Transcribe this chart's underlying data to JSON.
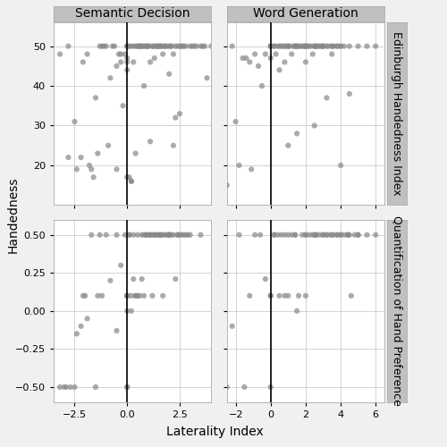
{
  "title_top_left": "Semantic Decision",
  "title_top_right": "Word Generation",
  "ylabel_right_top": "Edinburgh Handedness Index",
  "ylabel_right_bottom": "Quantification of Hand Preference",
  "xlabel": "Laterality Index",
  "ylabel_left": "Handedness",
  "bg_color": "#f0f0f0",
  "panel_bg": "#ffffff",
  "grid_color": "#cccccc",
  "dot_color": "#888888",
  "dot_alpha": 0.7,
  "dot_size": 20,
  "sd_ehi_x": [
    -3.2,
    -2.8,
    -2.8,
    -2.5,
    -2.4,
    -2.2,
    -2.1,
    -1.9,
    -1.8,
    -1.7,
    -1.6,
    -1.5,
    -1.4,
    -1.3,
    -1.2,
    -1.1,
    -1.0,
    -0.9,
    -0.8,
    -0.7,
    -0.6,
    -0.5,
    -0.4,
    -0.3,
    -0.2,
    -0.1,
    0.0,
    0.0,
    0.0,
    0.0,
    0.0,
    0.1,
    0.2,
    0.2,
    0.3,
    0.4,
    0.5,
    0.6,
    0.7,
    0.8,
    0.9,
    1.0,
    1.0,
    1.1,
    1.2,
    1.3,
    1.4,
    1.5,
    1.6,
    1.7,
    1.8,
    1.9,
    2.0,
    2.1,
    2.2,
    2.3,
    2.4,
    2.5,
    2.6,
    2.7,
    2.8,
    3.0,
    3.1,
    3.2,
    3.3,
    3.5,
    3.6,
    3.7,
    3.8,
    4.0,
    -0.5,
    -0.3,
    0.1,
    0.3,
    0.5,
    0.7,
    0.9,
    1.1,
    1.3,
    1.5,
    1.7,
    2.0,
    2.2,
    2.5,
    0.0,
    0.0,
    0.2,
    0.4,
    0.6,
    0.8,
    1.0,
    1.2,
    1.4,
    1.6,
    1.8,
    2.1,
    2.3,
    2.6
  ],
  "sd_ehi_y": [
    48,
    50,
    22,
    31,
    19,
    22,
    46,
    48,
    20,
    19,
    17,
    37,
    23,
    50,
    50,
    50,
    50,
    25,
    42,
    50,
    50,
    19,
    48,
    46,
    35,
    48,
    50,
    50,
    47,
    44,
    46,
    17,
    50,
    16,
    50,
    23,
    50,
    50,
    50,
    40,
    50,
    50,
    50,
    26,
    50,
    50,
    50,
    50,
    50,
    50,
    50,
    50,
    50,
    50,
    25,
    32,
    50,
    33,
    50,
    50,
    50,
    50,
    50,
    50,
    50,
    50,
    50,
    50,
    42,
    50,
    45,
    48,
    50,
    46,
    50,
    50,
    50,
    46,
    47,
    50,
    48,
    43,
    48,
    50,
    17,
    50,
    16,
    50,
    50,
    50,
    50,
    50,
    50,
    50,
    50,
    50,
    50,
    50
  ],
  "wg_ehi_x": [
    -2.5,
    -2.2,
    -2.0,
    -1.8,
    -1.6,
    -1.4,
    -1.2,
    -1.1,
    -0.9,
    -0.7,
    -0.5,
    -0.3,
    0.0,
    0.0,
    0.0,
    0.2,
    0.3,
    0.4,
    0.5,
    0.6,
    0.7,
    0.8,
    0.9,
    1.0,
    1.1,
    1.2,
    1.3,
    1.4,
    1.5,
    1.6,
    1.7,
    1.8,
    1.9,
    2.0,
    2.1,
    2.2,
    2.3,
    2.4,
    2.5,
    2.6,
    2.7,
    2.8,
    2.9,
    3.0,
    3.2,
    3.3,
    3.5,
    3.6,
    3.8,
    4.0,
    4.2,
    4.5,
    5.0,
    5.5,
    6.0,
    0.0,
    0.5,
    1.0,
    1.5,
    2.0,
    2.5,
    3.0,
    3.5,
    4.0,
    0.2,
    0.8,
    1.4,
    2.0,
    2.6,
    3.2,
    3.8,
    1.0,
    1.5,
    2.0,
    2.5,
    3.0,
    3.5,
    4.0,
    4.5
  ],
  "wg_ehi_y": [
    15,
    50,
    31,
    20,
    47,
    47,
    46,
    19,
    48,
    45,
    40,
    48,
    50,
    50,
    50,
    50,
    48,
    50,
    50,
    50,
    50,
    46,
    50,
    50,
    50,
    48,
    50,
    50,
    50,
    50,
    50,
    50,
    50,
    50,
    50,
    50,
    50,
    48,
    50,
    50,
    50,
    50,
    50,
    50,
    37,
    50,
    50,
    50,
    50,
    50,
    50,
    38,
    50,
    50,
    50,
    47,
    44,
    50,
    28,
    46,
    30,
    50,
    48,
    20,
    50,
    50,
    50,
    50,
    50,
    50,
    50,
    25,
    50,
    50,
    50,
    50,
    50,
    50,
    50
  ],
  "sd_qhp_x": [
    -3.2,
    -3.0,
    -2.9,
    -2.7,
    -2.5,
    -2.4,
    -2.2,
    -2.1,
    -2.0,
    -1.9,
    -1.7,
    -1.5,
    -1.4,
    -1.3,
    -1.2,
    -1.0,
    -0.8,
    -0.5,
    -0.5,
    0.0,
    0.0,
    0.0,
    0.0,
    0.0,
    0.0,
    0.1,
    0.2,
    0.3,
    0.4,
    0.5,
    0.6,
    0.7,
    0.8,
    0.9,
    1.0,
    1.1,
    1.2,
    1.3,
    1.4,
    1.5,
    1.6,
    1.7,
    1.8,
    1.9,
    2.0,
    2.1,
    2.2,
    2.3,
    2.4,
    2.5,
    2.6,
    2.7,
    2.8,
    2.9,
    3.0,
    3.5,
    -0.3,
    -0.1,
    0.1,
    0.3,
    0.5,
    0.7,
    0.9,
    1.1,
    1.3,
    1.5,
    1.7,
    2.0,
    0.0,
    0.2,
    0.4,
    0.8,
    1.2,
    1.6,
    2.0,
    2.4
  ],
  "sd_qhp_y": [
    -0.5,
    -0.5,
    -0.5,
    -0.5,
    -0.5,
    -0.15,
    -0.1,
    0.1,
    0.1,
    -0.05,
    0.5,
    -0.5,
    0.1,
    0.5,
    0.1,
    0.5,
    0.2,
    -0.13,
    0.5,
    -0.5,
    -0.5,
    0.1,
    0.1,
    0.1,
    0.1,
    0.5,
    0.1,
    0.21,
    0.1,
    0.1,
    0.1,
    0.21,
    0.1,
    0.5,
    0.5,
    0.5,
    0.1,
    0.5,
    0.5,
    0.5,
    0.5,
    0.1,
    0.5,
    0.5,
    0.5,
    0.5,
    0.5,
    0.21,
    0.5,
    0.5,
    0.5,
    0.5,
    0.5,
    0.5,
    0.5,
    0.5,
    0.3,
    0.5,
    0.5,
    0.5,
    0.5,
    0.5,
    0.5,
    0.5,
    0.5,
    0.5,
    0.5,
    0.5,
    0.0,
    0.0,
    0.1,
    0.5,
    0.5,
    0.5,
    0.5,
    0.5
  ],
  "wg_qhp_x": [
    -2.5,
    -2.2,
    -1.8,
    -1.5,
    -1.2,
    -0.9,
    -0.6,
    -0.3,
    0.0,
    0.0,
    0.0,
    0.2,
    0.4,
    0.6,
    0.8,
    1.0,
    1.2,
    1.4,
    1.6,
    1.8,
    2.0,
    2.2,
    2.4,
    2.6,
    2.8,
    3.0,
    3.2,
    3.4,
    3.6,
    3.8,
    4.0,
    4.2,
    4.4,
    4.6,
    4.8,
    5.0,
    5.5,
    6.0,
    0.5,
    1.0,
    1.5,
    2.0,
    2.5,
    3.0,
    3.5,
    4.0,
    4.5,
    0.2,
    0.8,
    1.4,
    2.0,
    2.6,
    3.2,
    3.8,
    4.4,
    5.0
  ],
  "wg_qhp_y": [
    -0.5,
    -0.1,
    0.5,
    -0.5,
    0.1,
    0.5,
    0.5,
    0.21,
    -0.5,
    0.1,
    0.1,
    0.5,
    0.5,
    0.5,
    0.5,
    0.5,
    0.5,
    0.5,
    0.1,
    0.5,
    0.5,
    0.5,
    0.5,
    0.5,
    0.5,
    0.5,
    0.5,
    0.5,
    0.5,
    0.5,
    0.5,
    0.5,
    0.5,
    0.1,
    0.5,
    0.5,
    0.5,
    0.5,
    0.1,
    0.1,
    0.0,
    0.1,
    0.5,
    0.5,
    0.5,
    0.5,
    0.5,
    0.5,
    0.1,
    0.5,
    0.5,
    0.5,
    0.5,
    0.5,
    0.5,
    0.5
  ],
  "sd_xlim": [
    -3.5,
    4.0
  ],
  "wg_xlim": [
    -2.5,
    6.5
  ],
  "ehi_ylim": [
    10,
    56
  ],
  "qhp_ylim": [
    -0.6,
    0.6
  ],
  "sd_xticks": [
    -2.5,
    0.0,
    2.5
  ],
  "wg_xticks": [
    -2,
    0,
    2,
    4,
    6
  ],
  "ehi_yticks": [
    20,
    30,
    40,
    50
  ],
  "qhp_yticks": [
    -0.5,
    -0.25,
    0.0,
    0.25,
    0.5
  ],
  "vline_x": 0.0,
  "strip_color": "#c0c0c0",
  "strip_text_color": "#000000",
  "strip_fontsize": 10,
  "axis_fontsize": 9,
  "label_fontsize": 10,
  "tick_fontsize": 8
}
